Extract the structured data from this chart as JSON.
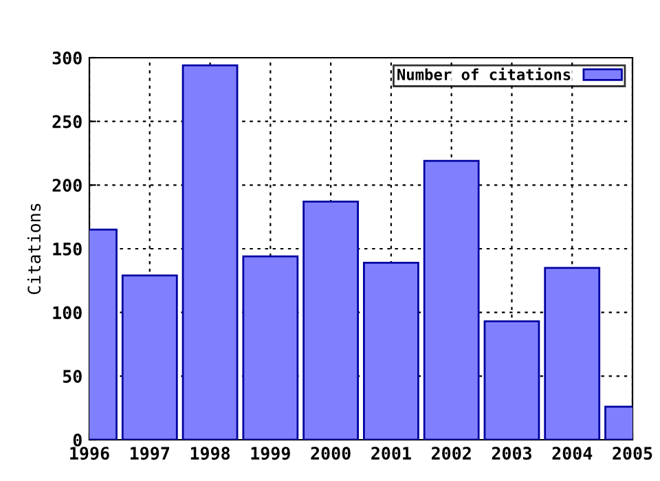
{
  "chart_data": {
    "type": "bar",
    "ylabel": "Citations",
    "x": [
      1996,
      1997,
      1998,
      1999,
      2000,
      2001,
      2002,
      2003,
      2004,
      2005
    ],
    "series": [
      {
        "name": "Number of citations",
        "color": "#8080ff",
        "values": [
          165,
          129,
          294,
          144,
          187,
          139,
          219,
          93,
          135,
          26
        ]
      }
    ],
    "xlim": [
      1996,
      2005
    ],
    "xticks": [
      1996,
      1997,
      1998,
      1999,
      2000,
      2001,
      2002,
      2003,
      2004,
      2005
    ],
    "ylim": [
      0,
      300
    ],
    "yticks": [
      0,
      50,
      100,
      150,
      200,
      250,
      300
    ],
    "grid": true,
    "legend": "top right"
  }
}
